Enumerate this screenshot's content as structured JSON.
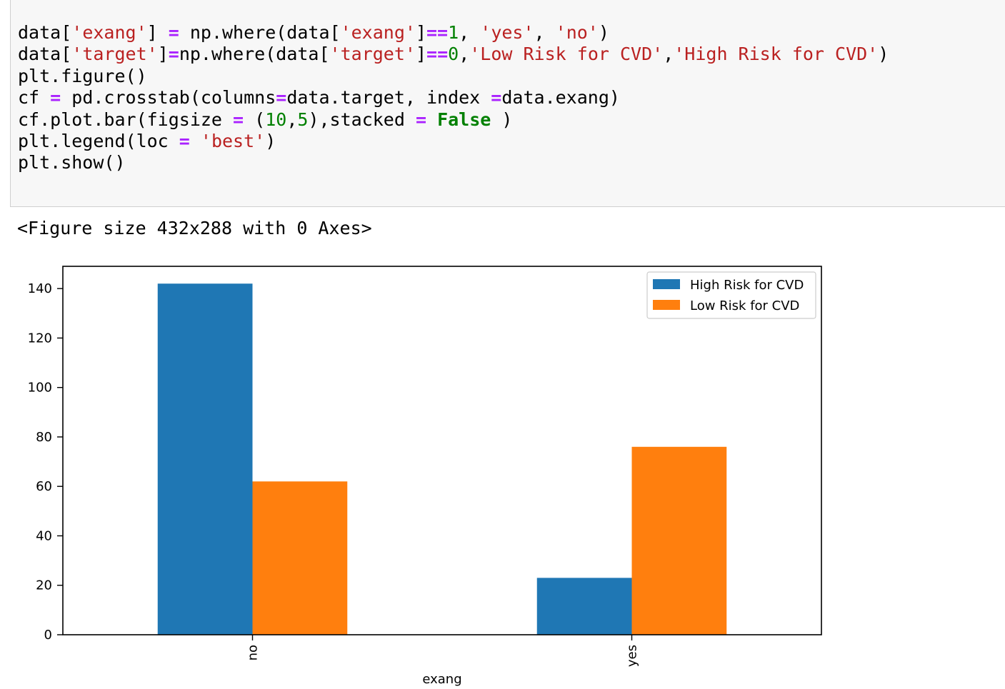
{
  "code_cell": {
    "lines": [
      [
        [
          "plain",
          "data["
        ],
        [
          "str",
          "'exang'"
        ],
        [
          "plain",
          "] "
        ],
        [
          "op",
          "="
        ],
        [
          "plain",
          " np.where(data["
        ],
        [
          "str",
          "'exang'"
        ],
        [
          "plain",
          "]"
        ],
        [
          "op",
          "=="
        ],
        [
          "num",
          "1"
        ],
        [
          "plain",
          ", "
        ],
        [
          "str",
          "'yes'"
        ],
        [
          "plain",
          ", "
        ],
        [
          "str",
          "'no'"
        ],
        [
          "plain",
          ")"
        ]
      ],
      [
        [
          "plain",
          "data["
        ],
        [
          "str",
          "'target'"
        ],
        [
          "plain",
          "]"
        ],
        [
          "op",
          "="
        ],
        [
          "plain",
          "np.where(data["
        ],
        [
          "str",
          "'target'"
        ],
        [
          "plain",
          "]"
        ],
        [
          "op",
          "=="
        ],
        [
          "num",
          "0"
        ],
        [
          "plain",
          ","
        ],
        [
          "str",
          "'Low Risk for CVD'"
        ],
        [
          "plain",
          ","
        ],
        [
          "str",
          "'High Risk for CVD'"
        ],
        [
          "plain",
          ")"
        ]
      ],
      [
        [
          "plain",
          "plt.figure()"
        ]
      ],
      [
        [
          "plain",
          "cf "
        ],
        [
          "op",
          "="
        ],
        [
          "plain",
          " pd.crosstab(columns"
        ],
        [
          "op",
          "="
        ],
        [
          "plain",
          "data.target, index "
        ],
        [
          "op",
          "="
        ],
        [
          "plain",
          "data.exang)"
        ]
      ],
      [
        [
          "plain",
          "cf.plot.bar(figsize "
        ],
        [
          "op",
          "="
        ],
        [
          "plain",
          " ("
        ],
        [
          "num",
          "10"
        ],
        [
          "plain",
          ","
        ],
        [
          "num",
          "5"
        ],
        [
          "plain",
          "),stacked "
        ],
        [
          "op",
          "="
        ],
        [
          "plain",
          " "
        ],
        [
          "kw",
          "False"
        ],
        [
          "plain",
          " )"
        ]
      ],
      [
        [
          "plain",
          "plt.legend(loc "
        ],
        [
          "op",
          "="
        ],
        [
          "plain",
          " "
        ],
        [
          "str",
          "'best'"
        ],
        [
          "plain",
          ")"
        ]
      ],
      [
        [
          "plain",
          "plt.show()"
        ]
      ]
    ]
  },
  "output": {
    "figure_text": "<Figure size 432x288 with 0 Axes>"
  },
  "chart_data": {
    "type": "bar",
    "categories": [
      "no",
      "yes"
    ],
    "series": [
      {
        "name": "High Risk for CVD",
        "values": [
          142,
          23
        ],
        "color": "#1f77b4"
      },
      {
        "name": "Low Risk for CVD",
        "values": [
          62,
          76
        ],
        "color": "#ff7f0e"
      }
    ],
    "xlabel": "exang",
    "ylabel": "",
    "ylim": [
      0,
      149
    ],
    "yticks": [
      0,
      20,
      40,
      60,
      80,
      100,
      120,
      140
    ],
    "legend_position": "top-right",
    "grid": false
  }
}
